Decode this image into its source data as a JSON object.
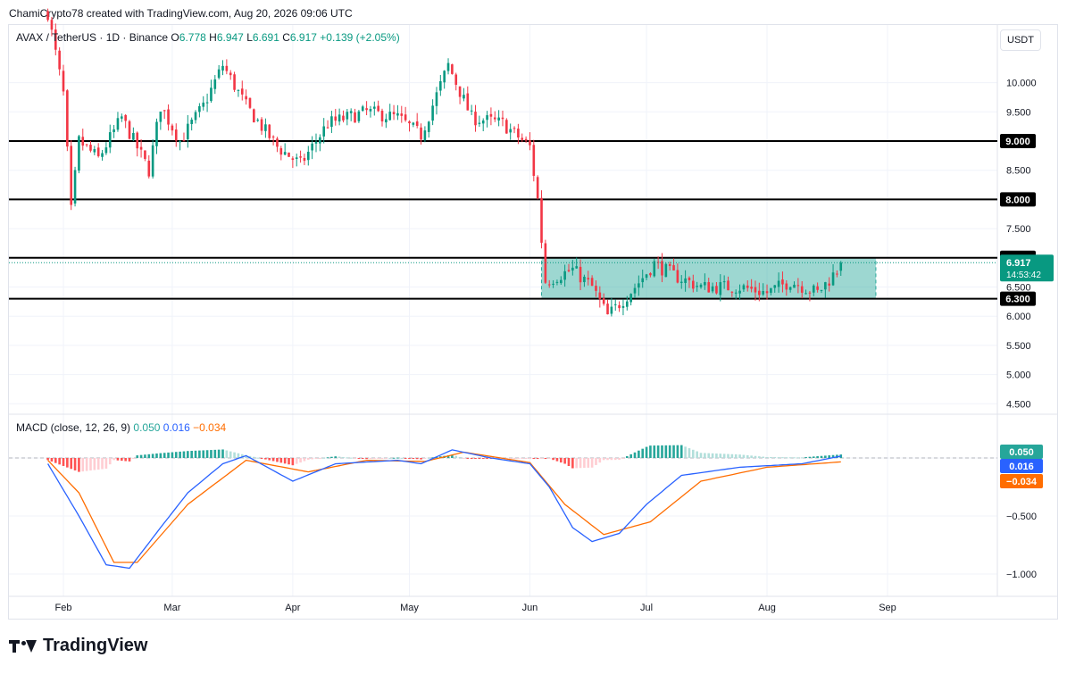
{
  "header": {
    "text": "ChamiCrypto78 created with TradingView.com, Aug 20, 2026 09:06 UTC"
  },
  "legend": {
    "symbol": "AVAX / TetherUS · 1D · Binance",
    "o_label": "O",
    "o": "6.778",
    "h_label": "H",
    "h": "6.947",
    "l_label": "L",
    "l": "6.691",
    "c_label": "C",
    "c": "6.917",
    "change": "+0.139 (+2.05%)"
  },
  "unit_button": "USDT",
  "macd_legend": {
    "label": "MACD (close, 12, 26, 9)",
    "hist": "0.050",
    "macd": "0.016",
    "signal": "−0.034"
  },
  "price_axis_ticks": [
    "10.000",
    "9.500",
    "8.500",
    "7.500",
    "6.500",
    "6.000",
    "5.500",
    "5.000",
    "4.500"
  ],
  "macd_axis_ticks": [
    "−0.500",
    "−1.000"
  ],
  "x_axis_ticks": [
    "Feb",
    "Mar",
    "Apr",
    "May",
    "Jun",
    "Jul",
    "Aug",
    "Sep"
  ],
  "horizontal_levels": [
    {
      "label": "9.000",
      "value": 9.0
    },
    {
      "label": "8.000",
      "value": 8.0
    },
    {
      "label": "7.000",
      "value": 7.0
    },
    {
      "label": "6.300",
      "value": 6.3
    }
  ],
  "current_price": {
    "label": "6.917",
    "countdown": "14:53:42",
    "value": 6.917
  },
  "macd_badges": [
    {
      "label": "0.050",
      "value": 0.05,
      "color": "#26a69a"
    },
    {
      "label": "0.016",
      "value": 0.016,
      "color": "#2962ff"
    },
    {
      "label": "−0.034",
      "value": -0.034,
      "color": "#ff6d00"
    }
  ],
  "colors": {
    "up": "#089981",
    "down": "#f23645",
    "macd": "#2962ff",
    "signal": "#ff6d00",
    "range_box": "#26a69a"
  },
  "chart_data": {
    "type": "candlestick",
    "title": "",
    "x_start": "2026-01-28",
    "ylim": [
      4.3,
      11.2
    ],
    "range_box": {
      "from": "2026-06-04",
      "to": "2026-08-29",
      "low": 6.3,
      "high": 7.0
    },
    "close_anchors": [
      [
        "2026-01-28",
        11.2
      ],
      [
        "2026-02-01",
        9.8
      ],
      [
        "2026-02-03",
        7.8
      ],
      [
        "2026-02-05",
        9.0
      ],
      [
        "2026-02-10",
        8.7
      ],
      [
        "2026-02-16",
        9.4
      ],
      [
        "2026-02-23",
        8.5
      ],
      [
        "2026-02-26",
        9.6
      ],
      [
        "2026-03-03",
        9.0
      ],
      [
        "2026-03-09",
        9.6
      ],
      [
        "2026-03-14",
        10.3
      ],
      [
        "2026-03-20",
        9.6
      ],
      [
        "2026-03-28",
        8.9
      ],
      [
        "2026-04-03",
        8.6
      ],
      [
        "2026-04-10",
        9.3
      ],
      [
        "2026-04-20",
        9.5
      ],
      [
        "2026-04-28",
        9.4
      ],
      [
        "2026-05-04",
        9.1
      ],
      [
        "2026-05-11",
        10.3
      ],
      [
        "2026-05-17",
        9.4
      ],
      [
        "2026-05-25",
        9.3
      ],
      [
        "2026-06-01",
        8.9
      ],
      [
        "2026-06-03",
        8.0
      ],
      [
        "2026-06-05",
        6.6
      ],
      [
        "2026-06-12",
        6.8
      ],
      [
        "2026-06-17",
        6.5
      ],
      [
        "2026-06-21",
        6.0
      ],
      [
        "2026-06-28",
        6.5
      ],
      [
        "2026-07-03",
        6.9
      ],
      [
        "2026-07-08",
        6.7
      ],
      [
        "2026-07-15",
        6.5
      ],
      [
        "2026-07-25",
        6.5
      ],
      [
        "2026-08-01",
        6.4
      ],
      [
        "2026-08-07",
        6.6
      ],
      [
        "2026-08-14",
        6.4
      ],
      [
        "2026-08-19",
        6.78
      ],
      [
        "2026-08-20",
        6.917
      ]
    ],
    "macd_ylim": [
      -1.1,
      0.2
    ],
    "macd_anchors": [
      [
        "2026-01-28",
        -0.05
      ],
      [
        "2026-02-05",
        -0.5
      ],
      [
        "2026-02-12",
        -0.92
      ],
      [
        "2026-02-18",
        -0.95
      ],
      [
        "2026-02-26",
        -0.6
      ],
      [
        "2026-03-05",
        -0.3
      ],
      [
        "2026-03-14",
        -0.05
      ],
      [
        "2026-03-20",
        0.02
      ],
      [
        "2026-04-01",
        -0.2
      ],
      [
        "2026-04-12",
        -0.05
      ],
      [
        "2026-04-28",
        -0.02
      ],
      [
        "2026-05-04",
        -0.05
      ],
      [
        "2026-05-12",
        0.07
      ],
      [
        "2026-05-22",
        0.0
      ],
      [
        "2026-06-01",
        -0.05
      ],
      [
        "2026-06-06",
        -0.25
      ],
      [
        "2026-06-12",
        -0.6
      ],
      [
        "2026-06-17",
        -0.72
      ],
      [
        "2026-06-24",
        -0.65
      ],
      [
        "2026-07-01",
        -0.4
      ],
      [
        "2026-07-10",
        -0.15
      ],
      [
        "2026-07-25",
        -0.08
      ],
      [
        "2026-08-10",
        -0.05
      ],
      [
        "2026-08-20",
        0.016
      ]
    ],
    "signal_anchors": [
      [
        "2026-01-28",
        -0.02
      ],
      [
        "2026-02-05",
        -0.3
      ],
      [
        "2026-02-14",
        -0.9
      ],
      [
        "2026-02-20",
        -0.9
      ],
      [
        "2026-03-05",
        -0.4
      ],
      [
        "2026-03-20",
        -0.02
      ],
      [
        "2026-04-05",
        -0.12
      ],
      [
        "2026-04-20",
        -0.02
      ],
      [
        "2026-05-05",
        -0.03
      ],
      [
        "2026-05-15",
        0.05
      ],
      [
        "2026-06-01",
        -0.04
      ],
      [
        "2026-06-10",
        -0.4
      ],
      [
        "2026-06-20",
        -0.66
      ],
      [
        "2026-07-02",
        -0.55
      ],
      [
        "2026-07-15",
        -0.2
      ],
      [
        "2026-08-01",
        -0.08
      ],
      [
        "2026-08-20",
        -0.034
      ]
    ]
  }
}
